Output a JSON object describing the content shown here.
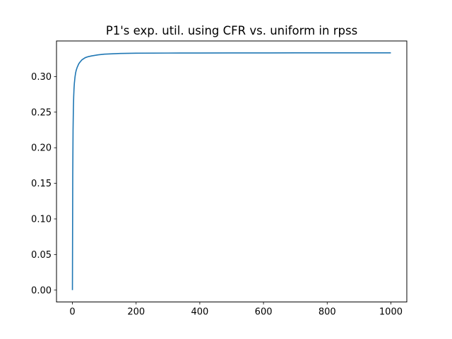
{
  "chart_data": {
    "type": "line",
    "title": "P1's exp. util. using CFR vs. uniform in rpss",
    "xlabel": "",
    "ylabel": "",
    "xlim": [
      -50,
      1050
    ],
    "ylim": [
      -0.0167,
      0.35
    ],
    "x_ticks": [
      0,
      200,
      400,
      600,
      800,
      1000
    ],
    "x_tick_labels": [
      "0",
      "200",
      "400",
      "600",
      "800",
      "1000"
    ],
    "y_ticks": [
      0.0,
      0.05,
      0.1,
      0.15,
      0.2,
      0.25,
      0.3
    ],
    "y_tick_labels": [
      "0.00",
      "0.05",
      "0.10",
      "0.15",
      "0.20",
      "0.25",
      "0.30"
    ],
    "grid": false,
    "line_color": "#1f77b4",
    "series": [
      {
        "x": [
          0,
          1,
          2,
          3,
          4,
          5,
          6,
          8,
          10,
          12,
          15,
          20,
          25,
          30,
          40,
          50,
          60,
          80,
          100,
          150,
          200,
          300,
          400,
          500,
          600,
          700,
          800,
          900,
          1000
        ],
        "y": [
          0.0,
          0.16,
          0.225,
          0.255,
          0.272,
          0.283,
          0.29,
          0.299,
          0.305,
          0.309,
          0.313,
          0.318,
          0.321,
          0.3235,
          0.3265,
          0.328,
          0.329,
          0.3305,
          0.3315,
          0.3325,
          0.3328,
          0.333,
          0.3331,
          0.3332,
          0.3332,
          0.3333,
          0.3333,
          0.3333,
          0.3333
        ]
      }
    ]
  }
}
